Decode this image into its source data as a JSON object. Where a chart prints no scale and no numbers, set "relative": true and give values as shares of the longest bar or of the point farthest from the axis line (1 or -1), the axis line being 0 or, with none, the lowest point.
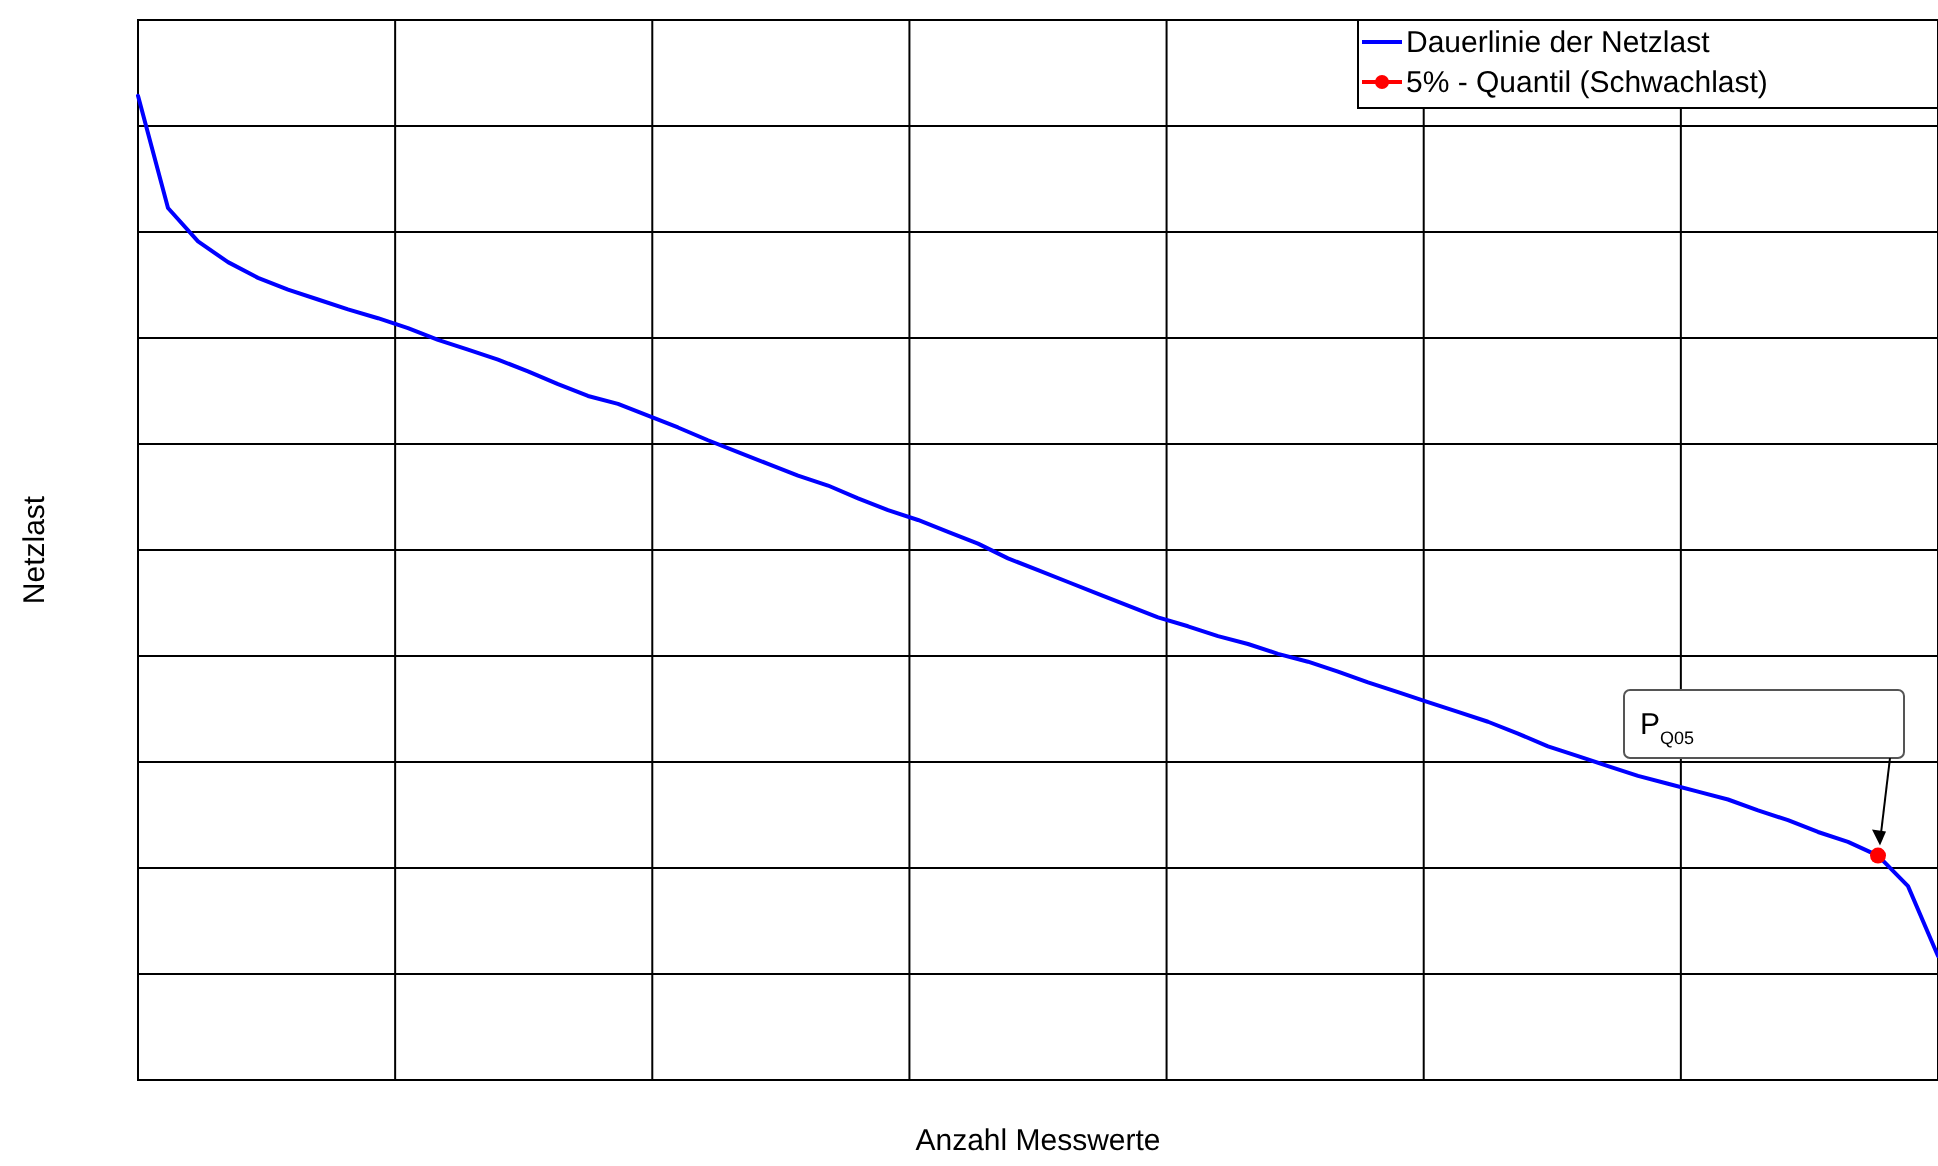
{
  "chart_data": {
    "type": "line",
    "relative": true,
    "xlabel": "Anzahl Messwerte",
    "ylabel": "Netzlast",
    "grid": true,
    "legend": "top right",
    "categories": [
      null,
      null,
      null,
      null,
      null,
      null,
      null,
      null,
      null,
      null,
      null,
      null,
      null,
      null,
      null,
      null,
      null,
      null,
      null,
      null,
      null,
      null,
      null,
      null,
      null,
      null,
      null,
      null,
      null,
      null,
      null,
      null,
      null,
      null,
      null,
      null,
      null,
      null,
      null,
      null,
      null,
      null,
      null,
      null,
      null,
      null,
      null,
      null,
      null,
      null,
      null,
      null,
      null,
      null,
      null,
      null,
      null,
      null,
      null,
      null,
      null
    ],
    "series": [
      {
        "name": "Dauerlinie der Netzlast",
        "color": "#0000ff",
        "marker": "none",
        "values": [
          1,
          0.886,
          0.852,
          0.831,
          0.815,
          0.803,
          0.793,
          0.783,
          0.774,
          0.764,
          0.752,
          0.742,
          0.732,
          0.72,
          0.707,
          0.695,
          0.687,
          0.675,
          0.663,
          0.65,
          0.638,
          0.626,
          0.614,
          0.604,
          0.591,
          0.579,
          0.569,
          0.557,
          0.545,
          0.53,
          0.518,
          0.506,
          0.494,
          0.482,
          0.47,
          0.461,
          0.451,
          0.443,
          0.433,
          0.425,
          0.415,
          0.404,
          0.394,
          0.384,
          0.374,
          0.364,
          0.352,
          0.339,
          0.329,
          0.319,
          0.309,
          0.301,
          0.293,
          0.285,
          0.274,
          0.264,
          0.252,
          0.242,
          0.228,
          0.197,
          0.126
        ]
      },
      {
        "name": "5% - Quantil (Schwachlast)",
        "color": "#ff0000",
        "marker": "circle",
        "values": [
          null,
          null,
          null,
          null,
          null,
          null,
          null,
          null,
          null,
          null,
          null,
          null,
          null,
          null,
          null,
          null,
          null,
          null,
          null,
          null,
          null,
          null,
          null,
          null,
          null,
          null,
          null,
          null,
          null,
          null,
          null,
          null,
          null,
          null,
          null,
          null,
          null,
          null,
          null,
          null,
          null,
          null,
          null,
          null,
          null,
          null,
          null,
          null,
          null,
          null,
          null,
          null,
          null,
          null,
          null,
          null,
          null,
          null,
          0.228,
          null,
          null
        ]
      }
    ],
    "annotations": [
      "P$_{Q05}$"
    ]
  }
}
